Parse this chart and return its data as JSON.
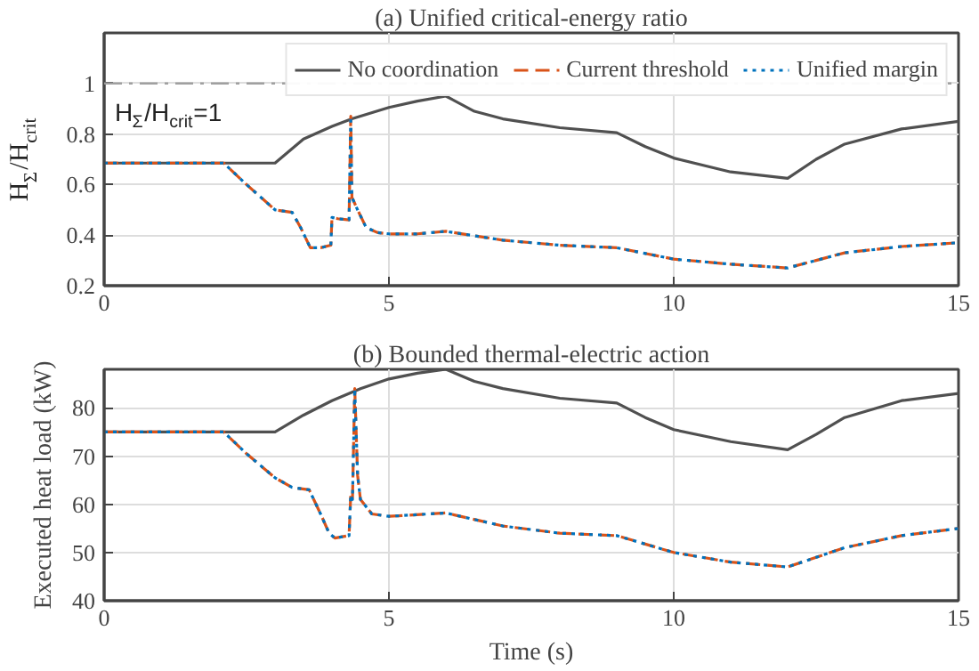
{
  "chart_data": [
    {
      "type": "line",
      "title": "(a) Unified critical-energy ratio",
      "ylabel": "H$_{Σ}$/H$_{crit}$",
      "xlim": [
        0,
        15
      ],
      "ylim": [
        0.2,
        1.2
      ],
      "xticks": [
        0,
        5,
        10,
        15
      ],
      "yticks": [
        0.2,
        0.4,
        0.6,
        0.8,
        1
      ],
      "grid": true,
      "legend": "top right",
      "ref_lines": [
        {
          "axis": "y",
          "value": 1,
          "label": "H$_{Σ}$/H$_{crit}$=1",
          "color": "#a0a0a0",
          "line_style": "dashdot"
        }
      ],
      "series": [
        {
          "name": "No coordination",
          "color": "#505050",
          "line_style": "solid",
          "x": [
            0,
            3,
            3.5,
            4,
            4.35,
            5,
            5.5,
            6,
            6.5,
            7,
            8,
            9,
            9.5,
            10,
            11,
            12,
            12.5,
            13,
            14,
            15
          ],
          "values": [
            0.685,
            0.685,
            0.78,
            0.83,
            0.86,
            0.905,
            0.93,
            0.95,
            0.89,
            0.86,
            0.825,
            0.805,
            0.75,
            0.705,
            0.65,
            0.625,
            0.7,
            0.76,
            0.82,
            0.85
          ]
        },
        {
          "name": "Current threshold",
          "color": "#d95319",
          "line_style": "dashed",
          "x": [
            0,
            2.1,
            2.5,
            3.0,
            3.3,
            3.45,
            3.62,
            3.8,
            3.98,
            4.0,
            4.1,
            4.3,
            4.33,
            4.35,
            4.45,
            4.6,
            4.8,
            5,
            5.5,
            6,
            7,
            8,
            9,
            10,
            11,
            12,
            12.5,
            13,
            14,
            15
          ],
          "values": [
            0.685,
            0.685,
            0.6,
            0.5,
            0.49,
            0.43,
            0.35,
            0.35,
            0.36,
            0.47,
            0.465,
            0.46,
            0.87,
            0.55,
            0.5,
            0.43,
            0.41,
            0.405,
            0.405,
            0.415,
            0.38,
            0.36,
            0.35,
            0.305,
            0.285,
            0.27,
            0.3,
            0.33,
            0.355,
            0.37
          ]
        },
        {
          "name": "Unified margin",
          "color": "#0072bd",
          "line_style": "dotted",
          "x": [
            0,
            2.1,
            2.5,
            3.0,
            3.3,
            3.45,
            3.62,
            3.8,
            3.98,
            4.0,
            4.1,
            4.3,
            4.33,
            4.35,
            4.45,
            4.6,
            4.8,
            5,
            5.5,
            6,
            7,
            8,
            9,
            10,
            11,
            12,
            12.5,
            13,
            14,
            15
          ],
          "values": [
            0.685,
            0.685,
            0.6,
            0.5,
            0.49,
            0.43,
            0.35,
            0.35,
            0.36,
            0.47,
            0.465,
            0.46,
            0.87,
            0.55,
            0.5,
            0.43,
            0.41,
            0.405,
            0.405,
            0.415,
            0.38,
            0.36,
            0.35,
            0.305,
            0.285,
            0.27,
            0.3,
            0.33,
            0.355,
            0.37
          ]
        }
      ]
    },
    {
      "type": "line",
      "title": "(b) Bounded thermal-electric action",
      "xlabel": "Time (s)",
      "ylabel": "Executed heat load (kW)",
      "xlim": [
        0,
        15
      ],
      "ylim": [
        40,
        88
      ],
      "xticks": [
        0,
        5,
        10,
        15
      ],
      "yticks": [
        40,
        50,
        60,
        70,
        80
      ],
      "grid": true,
      "series": [
        {
          "color": "#505050",
          "line_style": "solid",
          "x": [
            0,
            3,
            3.5,
            4,
            4.5,
            5,
            5.5,
            6,
            6.5,
            7,
            8,
            9,
            9.5,
            10,
            11,
            12,
            12.5,
            13,
            14,
            15
          ],
          "values": [
            75,
            75,
            78.5,
            81.5,
            84,
            86,
            87.2,
            88,
            85.5,
            84,
            82,
            81,
            78,
            75.5,
            73,
            71.3,
            74.5,
            78,
            81.5,
            83
          ]
        },
        {
          "color": "#d95319",
          "line_style": "dashed",
          "x": [
            0,
            2.1,
            2.5,
            3.0,
            3.3,
            3.6,
            3.8,
            3.95,
            4.05,
            4.3,
            4.33,
            4.36,
            4.4,
            4.45,
            4.5,
            4.7,
            5,
            6,
            7,
            8,
            9,
            10,
            11,
            12,
            13,
            14,
            15
          ],
          "values": [
            75,
            75,
            70.5,
            65.5,
            63.5,
            63,
            58,
            54,
            53,
            53.5,
            62,
            61,
            84,
            66,
            61,
            58,
            57.5,
            58.2,
            55.5,
            54,
            53.5,
            50,
            48,
            47,
            51,
            53.5,
            55
          ]
        },
        {
          "color": "#0072bd",
          "line_style": "dotted",
          "x": [
            0,
            2.1,
            2.5,
            3.0,
            3.3,
            3.6,
            3.8,
            3.95,
            4.05,
            4.3,
            4.33,
            4.36,
            4.4,
            4.45,
            4.5,
            4.7,
            5,
            6,
            7,
            8,
            9,
            10,
            11,
            12,
            13,
            14,
            15
          ],
          "values": [
            75,
            75,
            70.5,
            65.5,
            63.5,
            63,
            58,
            54,
            53,
            53.5,
            62,
            61,
            84,
            66,
            61,
            58,
            57.5,
            58.2,
            55.5,
            54,
            53.5,
            50,
            48,
            47,
            51,
            53.5,
            55
          ]
        }
      ]
    }
  ]
}
